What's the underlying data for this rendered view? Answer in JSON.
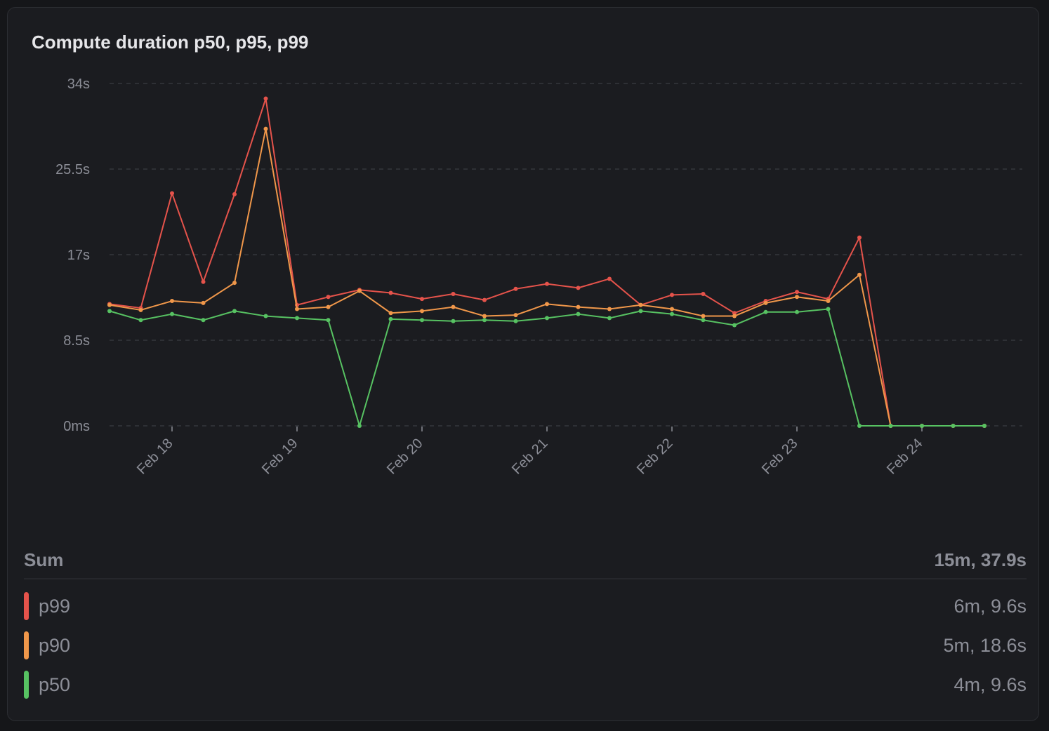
{
  "title": "Compute duration p50, p95, p99",
  "chart_data": {
    "type": "line",
    "title": "Compute duration p50, p95, p99",
    "ylim": [
      0,
      34
    ],
    "yticks": [
      "0ms",
      "8.5s",
      "17s",
      "25.5s",
      "34s"
    ],
    "ytick_values": [
      0,
      8.5,
      17,
      25.5,
      34
    ],
    "xticks": [
      "Feb 18",
      "Feb 19",
      "Feb 20",
      "Feb 21",
      "Feb 22",
      "Feb 23",
      "Feb 24"
    ],
    "grid": true,
    "x": [
      "Feb 17 12:00",
      "Feb 17 18:00",
      "Feb 18 00:00",
      "Feb 18 06:00",
      "Feb 18 12:00",
      "Feb 18 18:00",
      "Feb 19 00:00",
      "Feb 19 06:00",
      "Feb 19 12:00",
      "Feb 19 18:00",
      "Feb 20 00:00",
      "Feb 20 06:00",
      "Feb 20 12:00",
      "Feb 20 18:00",
      "Feb 21 00:00",
      "Feb 21 06:00",
      "Feb 21 12:00",
      "Feb 21 18:00",
      "Feb 22 00:00",
      "Feb 22 06:00",
      "Feb 22 12:00",
      "Feb 22 18:00",
      "Feb 23 00:00",
      "Feb 23 06:00",
      "Feb 23 12:00",
      "Feb 23 18:00",
      "Feb 24 00:00",
      "Feb 24 06:00",
      "Feb 24 12:00"
    ],
    "series": [
      {
        "name": "p99",
        "color": "#e5534b",
        "values": [
          12.1,
          11.7,
          23.1,
          14.3,
          23.0,
          32.5,
          12.0,
          12.8,
          13.5,
          13.2,
          12.6,
          13.1,
          12.5,
          13.6,
          14.1,
          13.7,
          14.6,
          12.0,
          13.0,
          13.1,
          11.2,
          12.4,
          13.3,
          12.6,
          18.7,
          0,
          0,
          0,
          0
        ]
      },
      {
        "name": "p90",
        "color": "#f0974a",
        "values": [
          12.0,
          11.5,
          12.4,
          12.2,
          14.2,
          29.5,
          11.6,
          11.8,
          13.4,
          11.2,
          11.4,
          11.8,
          10.9,
          11.0,
          12.1,
          11.8,
          11.6,
          12.0,
          11.6,
          10.9,
          10.9,
          12.2,
          12.8,
          12.4,
          15.0,
          0,
          0,
          0,
          0
        ]
      },
      {
        "name": "p50",
        "color": "#57c262",
        "values": [
          11.4,
          10.5,
          11.1,
          10.5,
          11.4,
          10.9,
          10.7,
          10.5,
          0,
          10.6,
          10.5,
          10.4,
          10.5,
          10.4,
          10.7,
          11.1,
          10.7,
          11.4,
          11.1,
          10.5,
          10.0,
          11.3,
          11.3,
          11.6,
          0,
          0,
          0,
          0,
          0
        ]
      }
    ]
  },
  "summary": {
    "sum_label": "Sum",
    "sum_value": "15m, 37.9s",
    "items": [
      {
        "label": "p99",
        "value": "6m, 9.6s",
        "color": "#e5534b"
      },
      {
        "label": "p90",
        "value": "5m, 18.6s",
        "color": "#f0974a"
      },
      {
        "label": "p50",
        "value": "4m, 9.6s",
        "color": "#57c262"
      }
    ]
  }
}
